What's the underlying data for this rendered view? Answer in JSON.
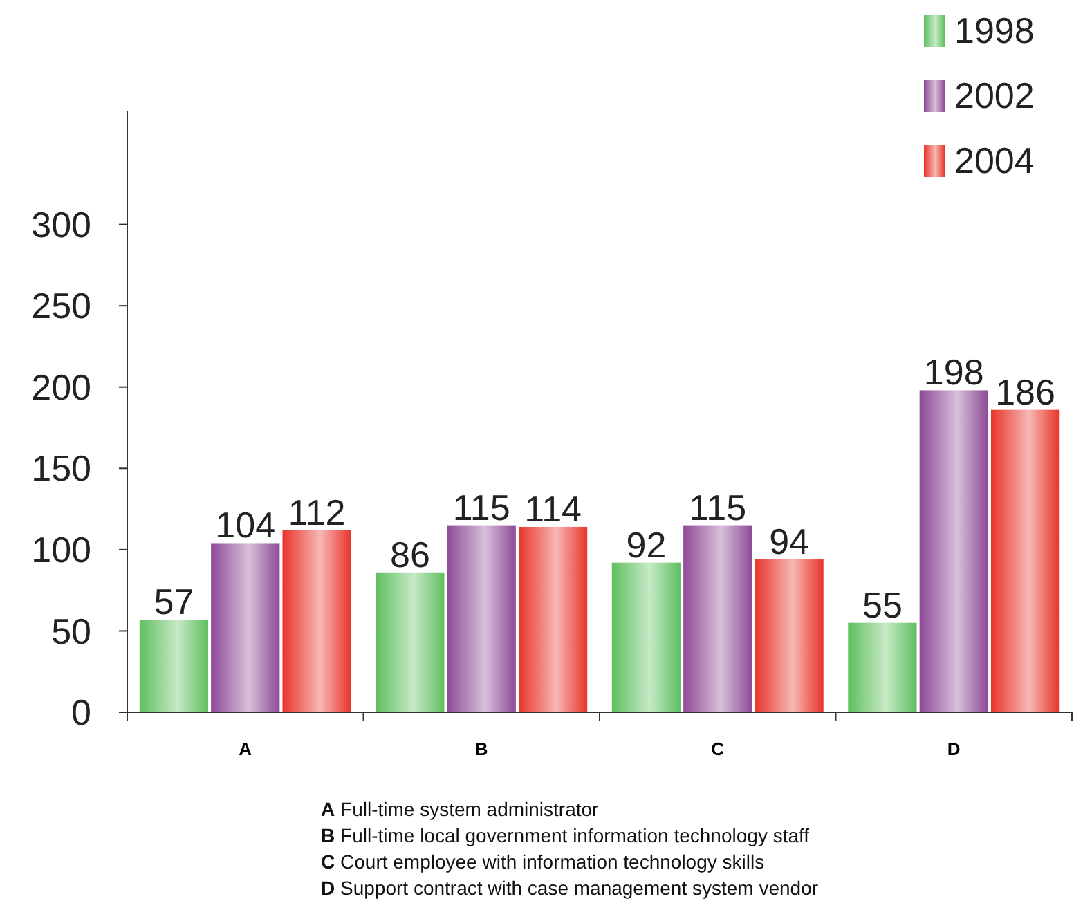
{
  "chart_data": {
    "type": "bar",
    "categories": [
      "A",
      "B",
      "C",
      "D"
    ],
    "series": [
      {
        "name": "1998",
        "color": "#5fbf5f",
        "values": [
          57,
          86,
          92,
          55
        ]
      },
      {
        "name": "2002",
        "color": "#8e4a96",
        "values": [
          104,
          115,
          115,
          198
        ]
      },
      {
        "name": "2004",
        "color": "#e8342a",
        "values": [
          112,
          114,
          94,
          186
        ]
      }
    ],
    "ylim": [
      0,
      370
    ],
    "yticks": [
      0,
      50,
      100,
      150,
      200,
      250,
      300
    ],
    "grid": false,
    "legend": "top right",
    "data_labels": true,
    "annotations": [
      "A Full-time system administrator",
      "B Full-time local government information technology staff",
      "C Court employee with information technology skills",
      "D Support contract with case management system vendor"
    ]
  }
}
